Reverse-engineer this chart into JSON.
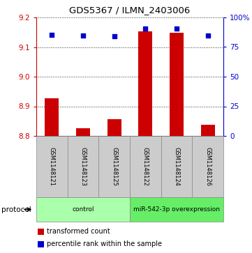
{
  "title": "GDS5367 / ILMN_2403006",
  "samples": [
    "GSM1148121",
    "GSM1148123",
    "GSM1148125",
    "GSM1148122",
    "GSM1148124",
    "GSM1148126"
  ],
  "red_values": [
    8.928,
    8.827,
    8.856,
    9.152,
    9.149,
    8.838
  ],
  "blue_values": [
    85.5,
    84.5,
    84.0,
    90.5,
    90.8,
    85.0
  ],
  "ymin": 8.8,
  "ymax": 9.2,
  "yticks_left": [
    8.8,
    8.9,
    9.0,
    9.1,
    9.2
  ],
  "yticks_right": [
    0,
    25,
    50,
    75,
    100
  ],
  "ytick_labels_right": [
    "0",
    "25",
    "50",
    "75",
    "100%"
  ],
  "bar_base": 8.8,
  "bar_color": "#cc0000",
  "dot_color": "#0000cc",
  "protocol_groups": [
    {
      "label": "control",
      "color": "#aaffaa",
      "count": 3
    },
    {
      "label": "miR-542-3p overexpression",
      "color": "#66ee66",
      "count": 3
    }
  ],
  "legend_items": [
    {
      "color": "#cc0000",
      "label": "transformed count"
    },
    {
      "color": "#0000cc",
      "label": "percentile rank within the sample"
    }
  ],
  "protocol_label": "protocol",
  "sample_box_color": "#cccccc",
  "bar_width": 0.45
}
